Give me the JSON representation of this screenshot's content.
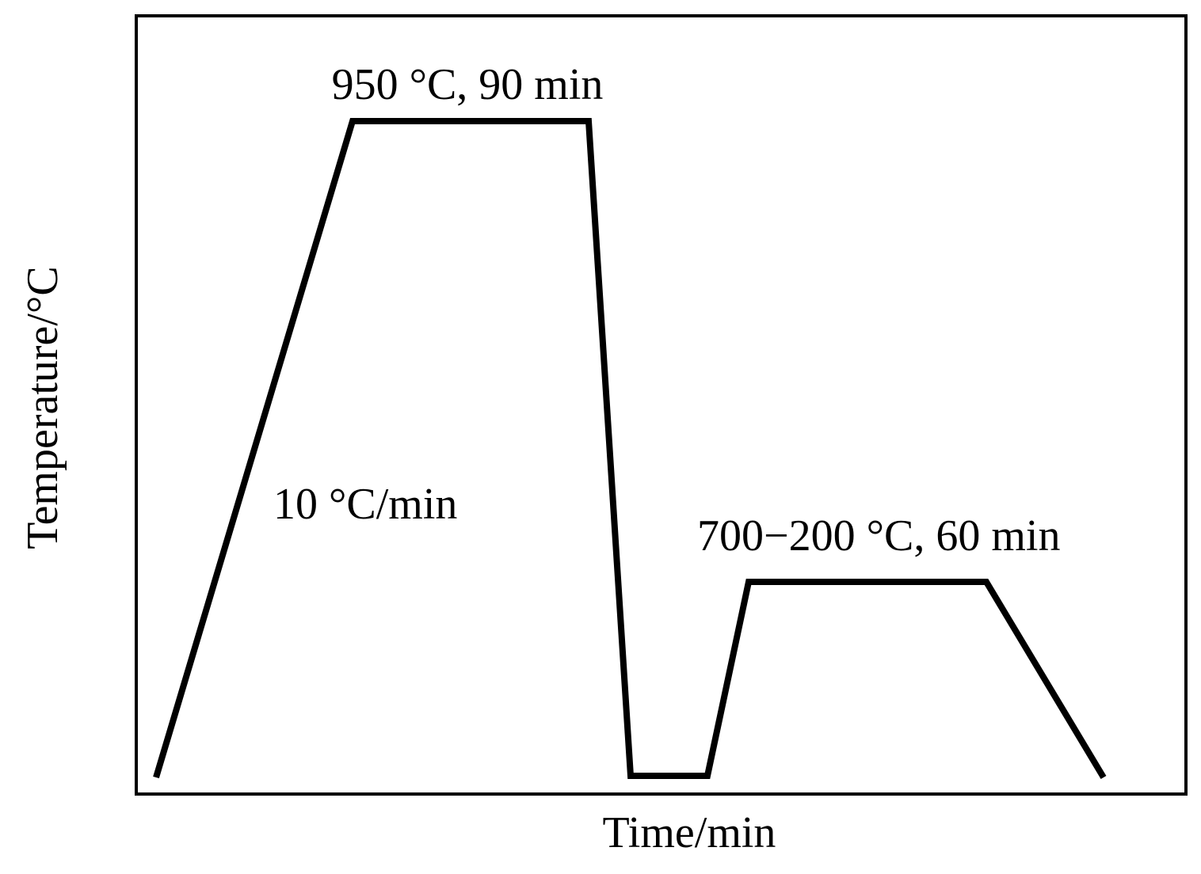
{
  "annotations": {
    "hold_high": "950 °C, 90 min",
    "heating_rate": "10 °C/min",
    "hold_low": "700−200 °C, 60 min"
  },
  "axes": {
    "x_label": "Time/min",
    "y_label": "Temperature/°C"
  }
}
